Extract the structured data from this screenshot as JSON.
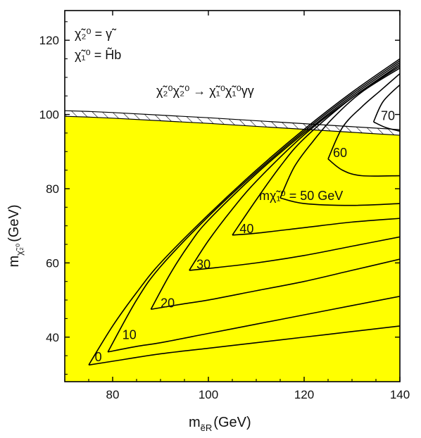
{
  "chart_data": {
    "type": "line",
    "title": "",
    "xlabel": "m",
    "xlabel_sub": "ẽR",
    "xlabel_unit": "(GeV)",
    "ylabel": "m",
    "ylabel_sub": "χ̃₂⁰",
    "ylabel_unit": "(GeV)",
    "xlim": [
      70,
      140
    ],
    "ylim": [
      28,
      128
    ],
    "xticks": [
      80,
      100,
      120,
      140
    ],
    "yticks": [
      40,
      60,
      80,
      100,
      120
    ],
    "grid": false,
    "fill_color": "#ffff00",
    "annotations": {
      "line1": "χ̃₂⁰ = γ̃",
      "line2": "χ̃₁⁰ = H̃b",
      "process": "χ̃₂⁰χ̃₂⁰ → χ̃₁⁰χ̃₁⁰γγ",
      "mass_label": "mχ̃₁⁰ = 50 GeV"
    },
    "excluded_region_boundary": {
      "x": [
        70,
        75,
        80,
        90,
        100,
        110,
        120,
        130,
        140
      ],
      "y": [
        99.5,
        99.3,
        99.0,
        98.3,
        97.6,
        96.8,
        96.0,
        95.2,
        94.4
      ]
    },
    "series": [
      {
        "name": "0",
        "x": [
          75,
          80,
          90,
          100,
          110,
          120,
          130,
          140
        ],
        "y": [
          32.5,
          33.5,
          35.5,
          37,
          38.5,
          40,
          41.5,
          43
        ],
        "upper_x": [
          75,
          80,
          85,
          90,
          100,
          110,
          120,
          130,
          140
        ],
        "upper_y": [
          32.5,
          43,
          52,
          60,
          73,
          85,
          96,
          106,
          115
        ]
      },
      {
        "name": "10",
        "x": [
          79,
          85,
          90,
          100,
          110,
          120,
          130,
          140
        ],
        "y": [
          36,
          37.5,
          38.5,
          41,
          43.5,
          46,
          48.5,
          51
        ],
        "upper_x": [
          79,
          85,
          90,
          100,
          110,
          120,
          130,
          140
        ],
        "upper_y": [
          36,
          50,
          59,
          72.5,
          84.5,
          95.5,
          105.5,
          114.5
        ]
      },
      {
        "name": "20",
        "x": [
          88,
          95,
          100,
          110,
          120,
          130,
          140
        ],
        "y": [
          47.5,
          49,
          50,
          52.5,
          55,
          58,
          61
        ],
        "upper_x": [
          88,
          92,
          96,
          100,
          110,
          120,
          130,
          140
        ],
        "upper_y": [
          47.5,
          57,
          65,
          71.5,
          84,
          95,
          105,
          114
        ]
      },
      {
        "name": "30",
        "x": [
          96,
          100,
          110,
          120,
          130,
          140
        ],
        "y": [
          58,
          58.5,
          60,
          62,
          64.5,
          67
        ],
        "upper_x": [
          96,
          100,
          105,
          110,
          120,
          130,
          140
        ],
        "upper_y": [
          58,
          66,
          74.5,
          82,
          94.5,
          104.5,
          113.5
        ]
      },
      {
        "name": "40",
        "x": [
          105,
          110,
          120,
          130,
          140
        ],
        "y": [
          67.5,
          68,
          69.5,
          71,
          72
        ],
        "upper_x": [
          105,
          110,
          115,
          120,
          130,
          140
        ],
        "upper_y": [
          67.5,
          77,
          86,
          93.5,
          104.5,
          113
        ]
      },
      {
        "name": "50",
        "x": [
          115,
          120,
          130,
          140
        ],
        "y": [
          77.5,
          76,
          75.5,
          76
        ],
        "upper_x": [
          115,
          118,
          122,
          126,
          132,
          140
        ],
        "upper_y": [
          77.5,
          86,
          93,
          99,
          106,
          112.5
        ]
      },
      {
        "name": "60",
        "x": [
          125,
          128,
          132,
          140
        ],
        "y": [
          88,
          85,
          83.5,
          83.5
        ],
        "upper_x": [
          125,
          128,
          132,
          136,
          140
        ],
        "upper_y": [
          88,
          96.5,
          102,
          106.5,
          111
        ]
      },
      {
        "name": "70",
        "x": [
          134.5,
          137,
          140
        ],
        "y": [
          98,
          96.5,
          95.5
        ],
        "upper_x": [
          134.5,
          136.5,
          140
        ],
        "upper_y": [
          98,
          103.5,
          108
        ]
      }
    ],
    "contour_labels": [
      {
        "text": "0",
        "x": 77,
        "y": 33.5
      },
      {
        "text": "10",
        "x": 83.5,
        "y": 39.5
      },
      {
        "text": "20",
        "x": 91.5,
        "y": 48
      },
      {
        "text": "30",
        "x": 99,
        "y": 58.5
      },
      {
        "text": "40",
        "x": 108,
        "y": 68
      },
      {
        "text": "60",
        "x": 127.5,
        "y": 88.5
      },
      {
        "text": "70",
        "x": 137.5,
        "y": 98.5
      }
    ]
  }
}
